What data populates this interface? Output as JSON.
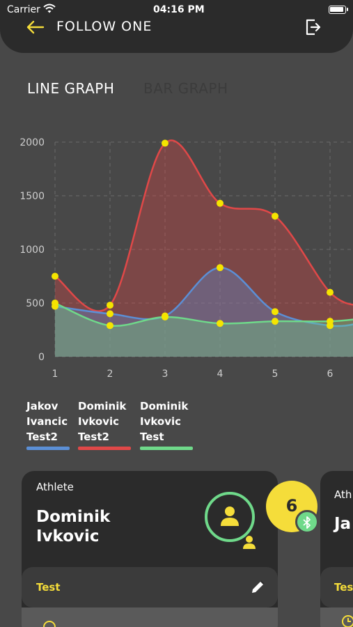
{
  "status_bar": {
    "carrier": "Carrier",
    "time": "04:16 PM"
  },
  "header": {
    "title": "FOLLOW ONE",
    "back_icon": "arrow-left-icon",
    "logout_icon": "logout-icon"
  },
  "tabs": [
    {
      "label": "LINE GRAPH",
      "active": true
    },
    {
      "label": "BAR GRAPH",
      "active": false
    }
  ],
  "chart_data": {
    "type": "area",
    "x": [
      1,
      2,
      3,
      4,
      5,
      6
    ],
    "ylim": [
      0,
      2000
    ],
    "yticks": [
      0,
      500,
      1000,
      1500,
      2000
    ],
    "grid": true,
    "series": [
      {
        "name": "Jakov Ivancic Test2",
        "color": "#5b8fd6",
        "values": [
          470,
          400,
          380,
          830,
          420,
          290
        ]
      },
      {
        "name": "Dominik Ivkovic Test2",
        "color": "#e04848",
        "values": [
          750,
          480,
          1990,
          1430,
          1310,
          600
        ]
      },
      {
        "name": "Dominik Ivkovic Test",
        "color": "#6fd98a",
        "values": [
          500,
          290,
          370,
          310,
          330,
          330
        ]
      }
    ]
  },
  "legend": [
    {
      "name": "Jakov\nIvancic\nTest2",
      "color": "#5b8fd6"
    },
    {
      "name": "Dominik\nIvkovic\nTest2",
      "color": "#e04848"
    },
    {
      "name": "Dominik\nIvkovic\nTest",
      "color": "#6fd98a"
    }
  ],
  "athlete_card": {
    "role": "Athlete",
    "name": "Dominik\nIvkovic",
    "test_label": "Test",
    "badge_count": "6"
  },
  "athlete_card_2": {
    "role": "Ath",
    "name": "Ja",
    "test_label": "Tes"
  },
  "colors": {
    "accent": "#f5dd3a",
    "green": "#6fd98a",
    "card": "#2b2b2b",
    "background": "#484848"
  }
}
